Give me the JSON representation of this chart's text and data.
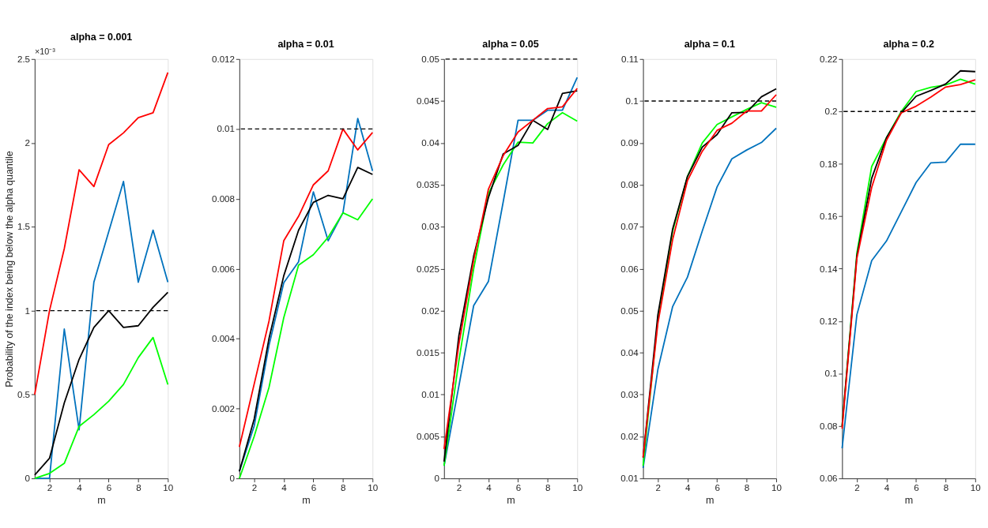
{
  "chart_data": [
    {
      "type": "line",
      "title": "alpha = 0.001",
      "xlabel": "m",
      "ylabel": "Probability of the index being below the alpha quantile",
      "annotations": [
        "×10⁻³"
      ],
      "x": [
        1,
        2,
        3,
        4,
        5,
        6,
        7,
        8,
        9,
        10
      ],
      "xlim": [
        1,
        10
      ],
      "xticks": [
        2,
        4,
        6,
        8,
        10
      ],
      "ylim": [
        0,
        2.5
      ],
      "yticks": [
        0,
        0.5,
        1,
        1.5,
        2,
        2.5
      ],
      "grid": false,
      "legend": false,
      "line_style": "solid",
      "marker": "none",
      "ref_lines": [
        {
          "axis": "y",
          "value": 1,
          "color": "#000000",
          "line_style": "dashed"
        }
      ],
      "series": [
        {
          "color": "#0072bd",
          "values": [
            0,
            0,
            0.89,
            0.29,
            1.17,
            1.47,
            1.77,
            1.17,
            1.48,
            1.17
          ]
        },
        {
          "color": "#00ff00",
          "values": [
            0,
            0.03,
            0.09,
            0.31,
            0.38,
            0.46,
            0.56,
            0.72,
            0.84,
            0.56
          ]
        },
        {
          "color": "#000000",
          "values": [
            0.02,
            0.12,
            0.45,
            0.71,
            0.9,
            1.0,
            0.9,
            0.91,
            1.02,
            1.11
          ]
        },
        {
          "color": "#ff0000",
          "values": [
            0.5,
            1.0,
            1.37,
            1.84,
            1.74,
            1.99,
            2.06,
            2.15,
            2.18,
            2.42
          ]
        }
      ]
    },
    {
      "type": "line",
      "title": "alpha = 0.01",
      "xlabel": "m",
      "x": [
        1,
        2,
        3,
        4,
        5,
        6,
        7,
        8,
        9,
        10
      ],
      "xlim": [
        1,
        10
      ],
      "xticks": [
        2,
        4,
        6,
        8,
        10
      ],
      "ylim": [
        0,
        0.012
      ],
      "yticks": [
        0,
        0.002,
        0.004,
        0.006,
        0.008,
        0.01,
        0.012
      ],
      "grid": false,
      "legend": false,
      "line_style": "solid",
      "marker": "none",
      "ref_lines": [
        {
          "axis": "y",
          "value": 0.01,
          "color": "#000000",
          "line_style": "dashed"
        }
      ],
      "series": [
        {
          "color": "#0072bd",
          "values": [
            0.0002,
            0.0015,
            0.0038,
            0.0056,
            0.0062,
            0.0082,
            0.0068,
            0.0076,
            0.0103,
            0.0088
          ]
        },
        {
          "color": "#00ff00",
          "values": [
            0,
            0.0012,
            0.0026,
            0.0046,
            0.0061,
            0.0064,
            0.0069,
            0.0076,
            0.0074,
            0.008
          ]
        },
        {
          "color": "#000000",
          "values": [
            0.0002,
            0.0017,
            0.004,
            0.0058,
            0.0071,
            0.0079,
            0.0081,
            0.008,
            0.0089,
            0.0087
          ]
        },
        {
          "color": "#ff0000",
          "values": [
            0.0009,
            0.0027,
            0.0045,
            0.0068,
            0.0075,
            0.0084,
            0.0088,
            0.01,
            0.0094,
            0.0099
          ]
        }
      ]
    },
    {
      "type": "line",
      "title": "alpha = 0.05",
      "xlabel": "m",
      "x": [
        1,
        2,
        3,
        4,
        5,
        6,
        7,
        8,
        9,
        10
      ],
      "xlim": [
        1,
        10
      ],
      "xticks": [
        2,
        4,
        6,
        8,
        10
      ],
      "ylim": [
        0,
        0.05
      ],
      "yticks": [
        0,
        0.005,
        0.01,
        0.015,
        0.02,
        0.025,
        0.03,
        0.035,
        0.04,
        0.045,
        0.05
      ],
      "grid": false,
      "legend": false,
      "line_style": "solid",
      "marker": "none",
      "ref_lines": [
        {
          "axis": "y",
          "value": 0.05,
          "color": "#000000",
          "line_style": "dashed"
        }
      ],
      "series": [
        {
          "color": "#0072bd",
          "values": [
            0.0015,
            0.011,
            0.0206,
            0.0235,
            0.033,
            0.0427,
            0.0427,
            0.0439,
            0.0439,
            0.0478
          ]
        },
        {
          "color": "#00ff00",
          "values": [
            0.0015,
            0.014,
            0.025,
            0.034,
            0.0374,
            0.0401,
            0.04,
            0.0423,
            0.0436,
            0.0426
          ]
        },
        {
          "color": "#000000",
          "values": [
            0.002,
            0.017,
            0.0265,
            0.0335,
            0.0387,
            0.0397,
            0.0427,
            0.0416,
            0.0459,
            0.0462
          ]
        },
        {
          "color": "#ff0000",
          "values": [
            0.0035,
            0.016,
            0.026,
            0.0345,
            0.0385,
            0.0413,
            0.0427,
            0.0441,
            0.0443,
            0.0465
          ]
        }
      ]
    },
    {
      "type": "line",
      "title": "alpha = 0.1",
      "xlabel": "m",
      "x": [
        1,
        2,
        3,
        4,
        5,
        6,
        7,
        8,
        9,
        10
      ],
      "xlim": [
        1,
        10
      ],
      "xticks": [
        2,
        4,
        6,
        8,
        10
      ],
      "ylim": [
        0.01,
        0.11
      ],
      "yticks": [
        0.01,
        0.02,
        0.03,
        0.04,
        0.05,
        0.06,
        0.07,
        0.08,
        0.09,
        0.1,
        0.11
      ],
      "grid": false,
      "legend": false,
      "line_style": "solid",
      "marker": "none",
      "ref_lines": [
        {
          "axis": "y",
          "value": 0.1,
          "color": "#000000",
          "line_style": "dashed"
        }
      ],
      "series": [
        {
          "color": "#0072bd",
          "values": [
            0.0125,
            0.036,
            0.051,
            0.058,
            0.069,
            0.0795,
            0.0862,
            0.0883,
            0.0901,
            0.0935
          ]
        },
        {
          "color": "#00ff00",
          "values": [
            0.013,
            0.048,
            0.069,
            0.082,
            0.09,
            0.0944,
            0.0962,
            0.098,
            0.0996,
            0.0985
          ]
        },
        {
          "color": "#000000",
          "values": [
            0.015,
            0.049,
            0.0695,
            0.082,
            0.089,
            0.092,
            0.0972,
            0.0973,
            0.101,
            0.1029
          ]
        },
        {
          "color": "#ff0000",
          "values": [
            0.015,
            0.047,
            0.067,
            0.081,
            0.088,
            0.093,
            0.0947,
            0.0976,
            0.0976,
            0.1015
          ]
        }
      ]
    },
    {
      "type": "line",
      "title": "alpha = 0.2",
      "xlabel": "m",
      "x": [
        1,
        2,
        3,
        4,
        5,
        6,
        7,
        8,
        9,
        10
      ],
      "xlim": [
        1,
        10
      ],
      "xticks": [
        2,
        4,
        6,
        8,
        10
      ],
      "ylim": [
        0.06,
        0.22
      ],
      "yticks": [
        0.06,
        0.08,
        0.1,
        0.12,
        0.14,
        0.16,
        0.18,
        0.2,
        0.22
      ],
      "grid": false,
      "legend": false,
      "line_style": "solid",
      "marker": "none",
      "ref_lines": [
        {
          "axis": "y",
          "value": 0.2,
          "color": "#000000",
          "line_style": "dashed"
        }
      ],
      "series": [
        {
          "color": "#0072bd",
          "values": [
            0.0715,
            0.1225,
            0.1431,
            0.1506,
            0.1617,
            0.1729,
            0.1804,
            0.1807,
            0.1875,
            0.1875
          ]
        },
        {
          "color": "#00ff00",
          "values": [
            0.08,
            0.146,
            0.179,
            0.19,
            0.2,
            0.2076,
            0.2092,
            0.2101,
            0.2123,
            0.2104
          ]
        },
        {
          "color": "#000000",
          "values": [
            0.08,
            0.145,
            0.1745,
            0.19,
            0.1995,
            0.2058,
            0.208,
            0.2105,
            0.2155,
            0.2152
          ]
        },
        {
          "color": "#ff0000",
          "values": [
            0.079,
            0.144,
            0.171,
            0.189,
            0.1995,
            0.202,
            0.2055,
            0.2093,
            0.2103,
            0.2121
          ]
        }
      ]
    }
  ]
}
